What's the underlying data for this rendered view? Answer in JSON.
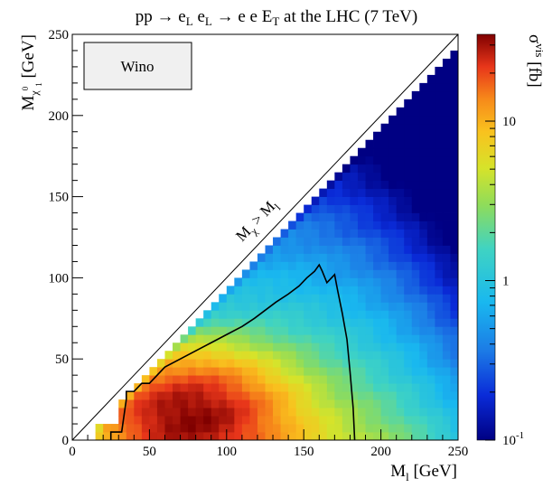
{
  "chart_data": {
    "type": "heatmap",
    "title": "pp → ẽ_L ẽ_L → e e E̸_T at the LHC (7 TeV)",
    "title_parts": {
      "prefix": "pp → ",
      "sel1": "e",
      "sel1_sub": "L",
      "sel2": "e",
      "sel2_sub": "L",
      "arrow": " → e e ",
      "met": "E",
      "met_sub": "T",
      "suffix": " at the LHC (7 TeV)"
    },
    "xlabel": "M [GeV]",
    "xlabel_parts": {
      "main": "M",
      "sub": "l",
      "unit": " [GeV]"
    },
    "ylabel": "M [GeV]",
    "ylabel_parts": {
      "main": "M",
      "sub": "χ",
      "sup": "0",
      "subsub": "1",
      "unit": " [GeV]"
    },
    "zlabel": "σvis [fb]",
    "zlabel_parts": {
      "main": "σ",
      "sup": "vis",
      "unit": " [fb]"
    },
    "xlim": [
      0,
      250
    ],
    "ylim": [
      0,
      250
    ],
    "zlim": [
      0.1,
      35
    ],
    "z_scale": "log",
    "xticks": [
      0,
      50,
      100,
      150,
      200,
      250
    ],
    "yticks": [
      0,
      50,
      100,
      150,
      200,
      250
    ],
    "zticks": [
      {
        "value": 10,
        "label": "10"
      },
      {
        "value": 1,
        "label": "1"
      },
      {
        "value": 0.1,
        "label": "10",
        "sup": "-1"
      }
    ],
    "legend_box": "Wino",
    "diagonal_label": "M > M",
    "diagonal_label_parts": {
      "m1": "M",
      "sub1": "χ",
      "gt": " > ",
      "m2": "M",
      "sub2": "l"
    },
    "bin_width": 5,
    "heat_model": {
      "low_region": {
        "peak_x": 75,
        "peak_y": 15,
        "sx": 50,
        "sy": 30,
        "amp": 30
      },
      "high_region": {
        "center_x": 125,
        "sx": 95,
        "y_decay": 48,
        "amp": 6
      }
    },
    "exclusion_contour": [
      [
        25,
        0
      ],
      [
        25,
        5
      ],
      [
        32,
        5
      ],
      [
        35,
        25
      ],
      [
        35,
        30
      ],
      [
        40,
        30
      ],
      [
        45,
        35
      ],
      [
        50,
        35
      ],
      [
        55,
        40
      ],
      [
        60,
        45
      ],
      [
        70,
        50
      ],
      [
        80,
        55
      ],
      [
        90,
        60
      ],
      [
        100,
        65
      ],
      [
        110,
        70
      ],
      [
        118,
        75
      ],
      [
        125,
        80
      ],
      [
        132,
        85
      ],
      [
        140,
        90
      ],
      [
        147,
        95
      ],
      [
        152,
        100
      ],
      [
        157,
        104
      ],
      [
        160,
        108
      ],
      [
        162,
        104
      ],
      [
        165,
        97
      ],
      [
        168,
        100
      ],
      [
        170,
        102
      ],
      [
        172,
        92
      ],
      [
        175,
        78
      ],
      [
        178,
        62
      ],
      [
        180,
        42
      ],
      [
        182,
        20
      ],
      [
        183,
        0
      ]
    ]
  }
}
